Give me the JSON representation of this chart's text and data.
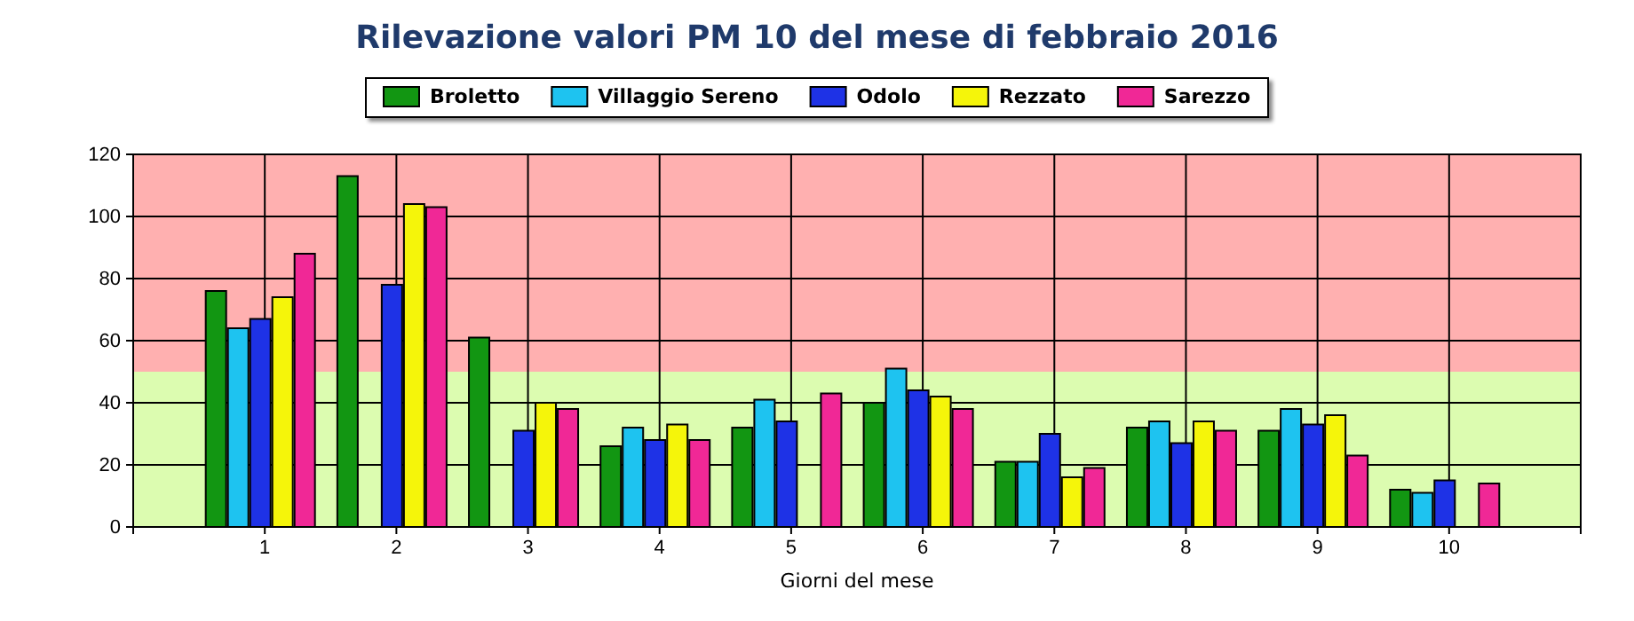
{
  "chart_data": {
    "type": "bar",
    "title": "Rilevazione valori PM 10 del mese di febbraio 2016",
    "xlabel": "Giorni del mese",
    "categories": [
      "1",
      "2",
      "3",
      "4",
      "5",
      "6",
      "7",
      "8",
      "9",
      "10"
    ],
    "series": [
      {
        "name": "Broletto",
        "color": "#129612",
        "values": [
          76,
          113,
          61,
          26,
          32,
          40,
          21,
          32,
          31,
          12
        ]
      },
      {
        "name": "Villaggio Sereno",
        "color": "#1ec3f0",
        "values": [
          64,
          null,
          null,
          32,
          41,
          51,
          21,
          34,
          38,
          11
        ]
      },
      {
        "name": "Odolo",
        "color": "#1e32e6",
        "values": [
          67,
          78,
          31,
          28,
          34,
          44,
          30,
          27,
          33,
          15
        ]
      },
      {
        "name": "Rezzato",
        "color": "#f5f50a",
        "values": [
          74,
          104,
          40,
          33,
          null,
          42,
          16,
          34,
          36,
          null
        ]
      },
      {
        "name": "Sarezzo",
        "color": "#f02896",
        "values": [
          88,
          103,
          38,
          28,
          43,
          38,
          19,
          31,
          23,
          14
        ]
      }
    ],
    "ylim": [
      0,
      120
    ],
    "yticks": [
      0,
      20,
      40,
      60,
      80,
      100,
      120
    ],
    "grid": true,
    "legend": "top",
    "bands": [
      {
        "axis": "y",
        "from": 0,
        "to": 50,
        "color": "#dcfcb0"
      },
      {
        "axis": "y",
        "from": 50,
        "to": 120,
        "color": "#ffb0b0"
      }
    ]
  }
}
